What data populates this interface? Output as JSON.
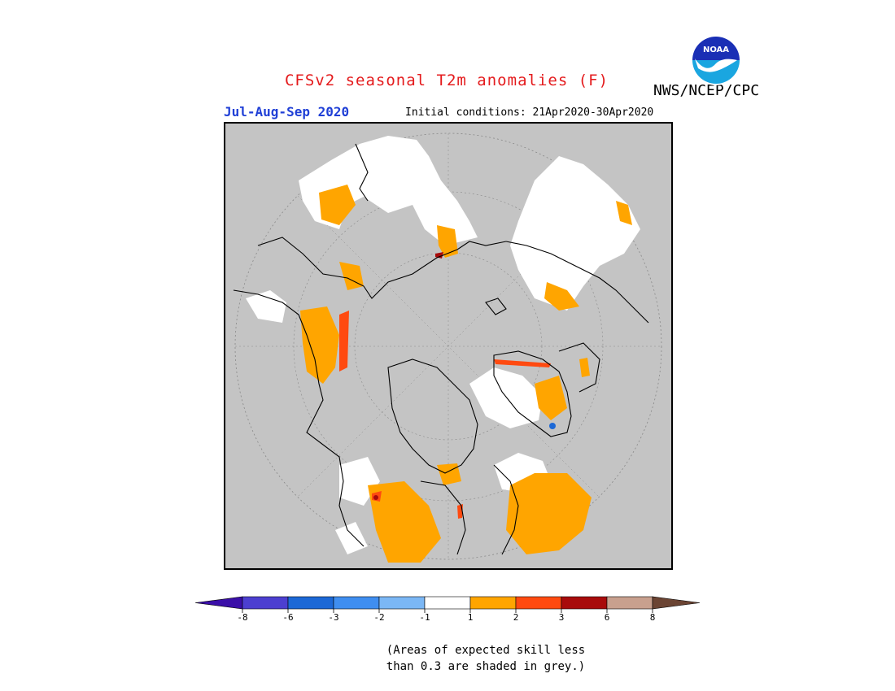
{
  "title": "CFSv2 seasonal T2m anomalies (F)",
  "season": "Jul-Aug-Sep 2020",
  "initial_conditions": "Initial conditions: 21Apr2020-30Apr2020",
  "organization": "NWS/NCEP/CPC",
  "logo_text": "NOAA",
  "map": {
    "projection": "north-polar-stereographic",
    "background_color": "#c4c4c4"
  },
  "legend": {
    "tick_labels": [
      "-8",
      "-6",
      "-3",
      "-2",
      "-1",
      "1",
      "2",
      "3",
      "6",
      "8"
    ],
    "colors": [
      "#3a0fa8",
      "#4c3fd0",
      "#1c68d6",
      "#3f8ef0",
      "#7bb7f5",
      "#ffffff",
      "#ffa500",
      "#ff4a10",
      "#a80b0b",
      "#c8a08e",
      "#6b4433"
    ]
  },
  "note": {
    "line1": "(Areas of expected skill less",
    "line2": "than 0.3 are shaded in grey.)"
  }
}
